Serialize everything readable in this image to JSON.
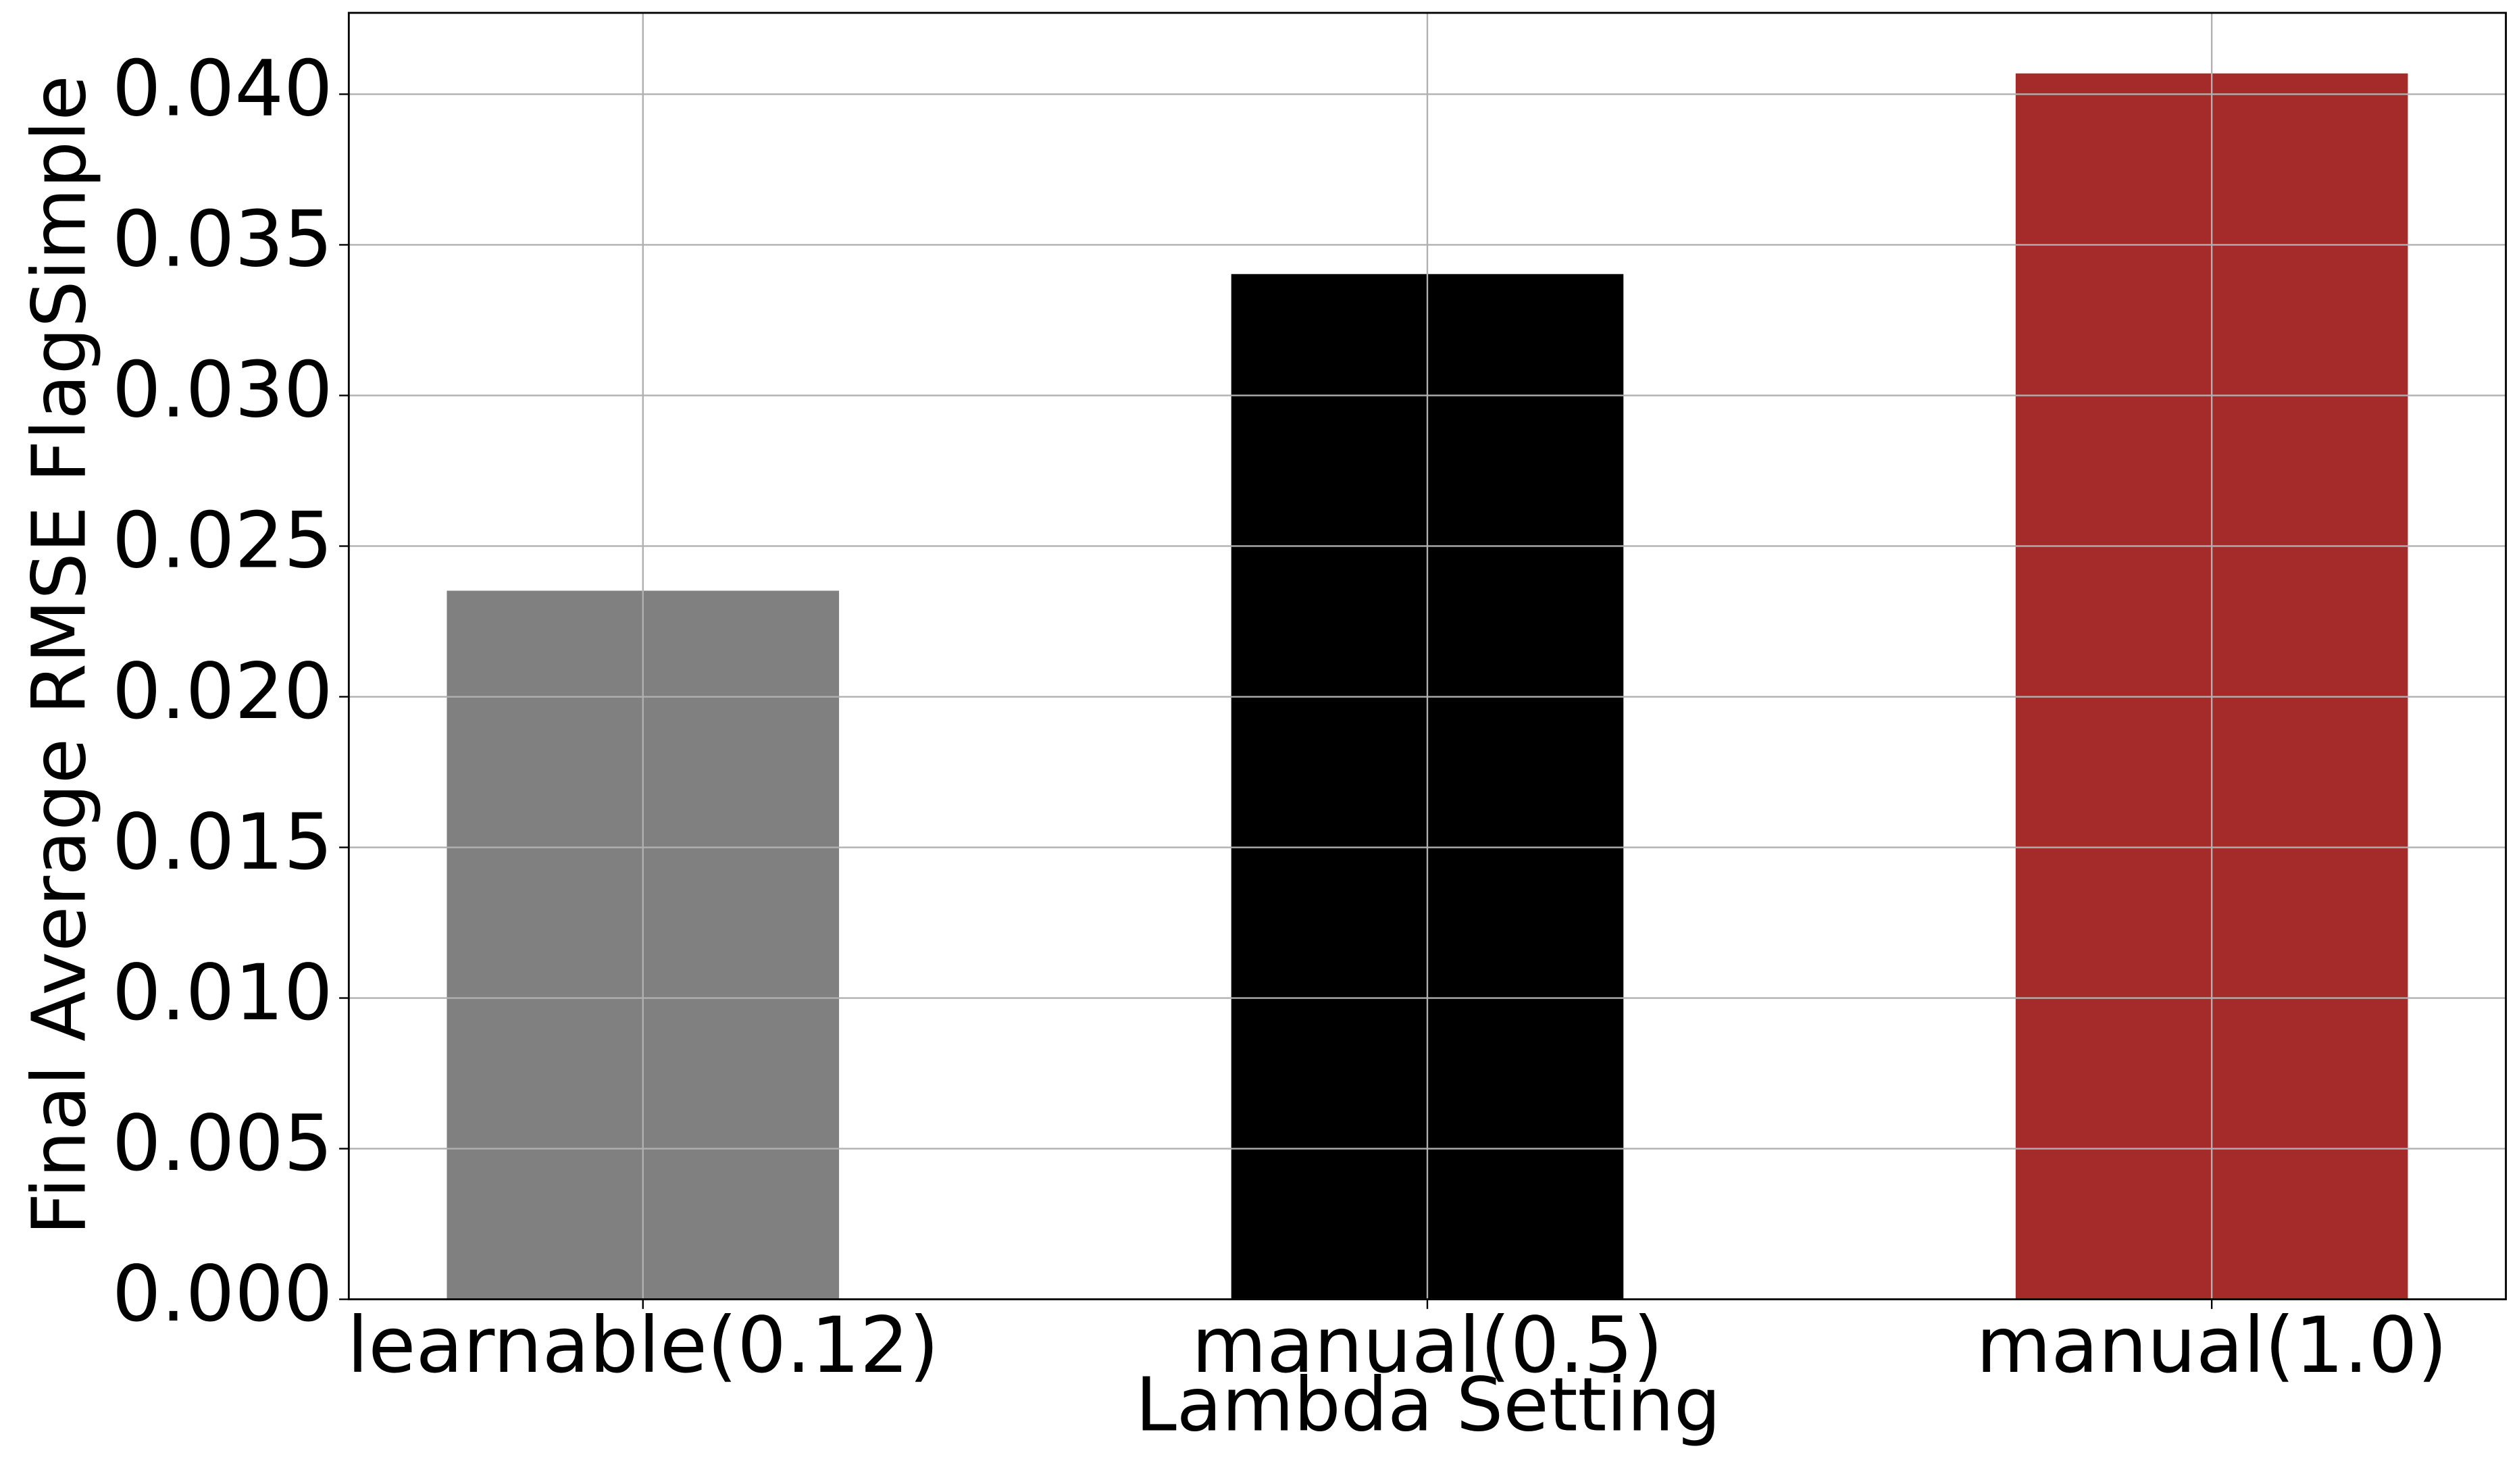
{
  "chart_data": {
    "type": "bar",
    "xlabel": "Lambda Setting",
    "ylabel": "Final Average RMSE FlagSimple",
    "categories": [
      "learnable(0.12)",
      "manual(0.5)",
      "manual(1.0)"
    ],
    "values": [
      0.02352,
      0.03403,
      0.04069
    ],
    "colors": [
      "#808080",
      "#000000",
      "#a52a2a"
    ],
    "ylim": [
      0,
      0.0427
    ],
    "yticks": [
      {
        "value": 0,
        "label": "0.000"
      },
      {
        "value": 0.005,
        "label": "0.005"
      },
      {
        "value": 0.01,
        "label": "0.010"
      },
      {
        "value": 0.015,
        "label": "0.015"
      },
      {
        "value": 0.02,
        "label": "0.020"
      },
      {
        "value": 0.025,
        "label": "0.025"
      },
      {
        "value": 0.03,
        "label": "0.030"
      },
      {
        "value": 0.035,
        "label": "0.035"
      },
      {
        "value": 0.04,
        "label": "0.040"
      }
    ],
    "grid": true
  }
}
